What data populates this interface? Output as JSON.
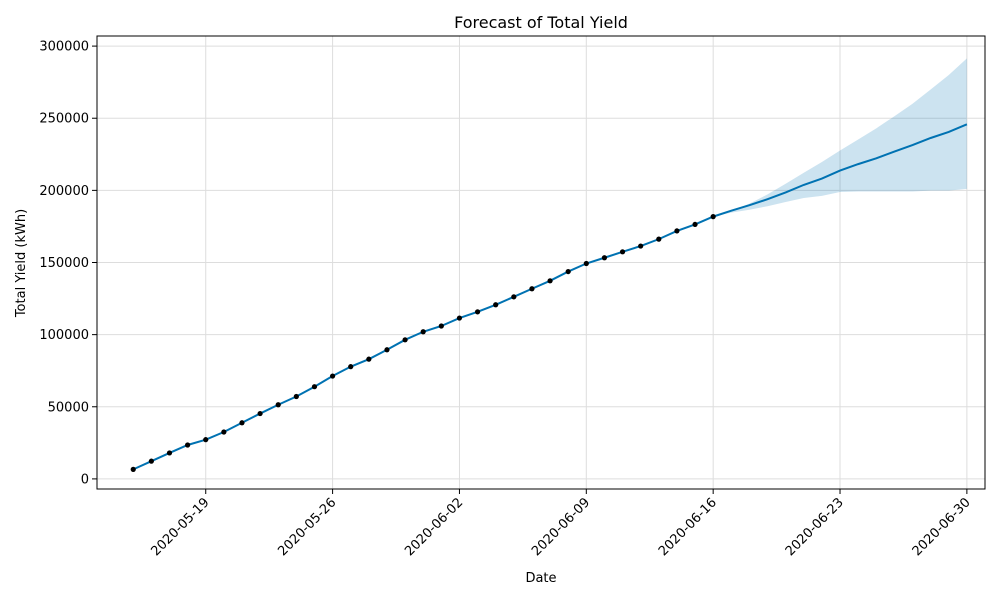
{
  "colors": {
    "forecast_line": "#0072B2",
    "interval_fill": "#0072B2",
    "observed_points": "#000000",
    "grid": "#dddddd"
  },
  "chart_data": {
    "type": "line",
    "title": "Forecast of Total Yield",
    "xlabel": "Date",
    "ylabel": "Total Yield (kWh)",
    "xlim": [
      "2020-05-13",
      "2020-07-01"
    ],
    "ylim": [
      -7000,
      307000
    ],
    "grid": true,
    "x_ticks": [
      "2020-05-19",
      "2020-05-26",
      "2020-06-02",
      "2020-06-09",
      "2020-06-16",
      "2020-06-23",
      "2020-06-30"
    ],
    "y_ticks": [
      0,
      50000,
      100000,
      150000,
      200000,
      250000,
      300000
    ],
    "observed": {
      "x": [
        "2020-05-15",
        "2020-05-16",
        "2020-05-17",
        "2020-05-18",
        "2020-05-19",
        "2020-05-20",
        "2020-05-21",
        "2020-05-22",
        "2020-05-23",
        "2020-05-24",
        "2020-05-25",
        "2020-05-26",
        "2020-05-27",
        "2020-05-28",
        "2020-05-29",
        "2020-05-30",
        "2020-05-31",
        "2020-06-01",
        "2020-06-02",
        "2020-06-03",
        "2020-06-04",
        "2020-06-05",
        "2020-06-06",
        "2020-06-07",
        "2020-06-08",
        "2020-06-09",
        "2020-06-10",
        "2020-06-11",
        "2020-06-12",
        "2020-06-13",
        "2020-06-14",
        "2020-06-15",
        "2020-06-16"
      ],
      "y": [
        6600,
        12300,
        18000,
        23500,
        27200,
        32500,
        38900,
        45300,
        51400,
        57100,
        63900,
        71300,
        77800,
        83000,
        89500,
        96400,
        102000,
        106000,
        111500,
        115800,
        120700,
        126200,
        131800,
        137300,
        143700,
        149300,
        153300,
        157400,
        161400,
        166200,
        171900,
        176400,
        181800
      ]
    },
    "forecast": {
      "x": [
        "2020-05-15",
        "2020-05-16",
        "2020-05-17",
        "2020-05-18",
        "2020-05-19",
        "2020-05-20",
        "2020-05-21",
        "2020-05-22",
        "2020-05-23",
        "2020-05-24",
        "2020-05-25",
        "2020-05-26",
        "2020-05-27",
        "2020-05-28",
        "2020-05-29",
        "2020-05-30",
        "2020-05-31",
        "2020-06-01",
        "2020-06-02",
        "2020-06-03",
        "2020-06-04",
        "2020-06-05",
        "2020-06-06",
        "2020-06-07",
        "2020-06-08",
        "2020-06-09",
        "2020-06-10",
        "2020-06-11",
        "2020-06-12",
        "2020-06-13",
        "2020-06-14",
        "2020-06-15",
        "2020-06-16",
        "2020-06-17",
        "2020-06-18",
        "2020-06-19",
        "2020-06-20",
        "2020-06-21",
        "2020-06-22",
        "2020-06-23",
        "2020-06-24",
        "2020-06-25",
        "2020-06-26",
        "2020-06-27",
        "2020-06-28",
        "2020-06-29",
        "2020-06-30"
      ],
      "yhat": [
        6600,
        12300,
        18000,
        23500,
        27200,
        32500,
        38900,
        45300,
        51400,
        57100,
        63900,
        71300,
        77800,
        83000,
        89500,
        96400,
        102000,
        106000,
        111500,
        115800,
        120700,
        126200,
        131800,
        137300,
        143700,
        149300,
        153300,
        157400,
        161400,
        166200,
        171900,
        176400,
        181800,
        185900,
        189700,
        193900,
        198600,
        203800,
        208200,
        213700,
        218200,
        222200,
        226900,
        231400,
        236300,
        240500,
        245800
      ],
      "yhat_lower": [
        6600,
        12300,
        18000,
        23500,
        27200,
        32500,
        38900,
        45300,
        51400,
        57100,
        63900,
        71300,
        77800,
        83000,
        89500,
        96400,
        102000,
        106000,
        111500,
        115800,
        120700,
        126200,
        131800,
        137300,
        143700,
        149300,
        153300,
        157400,
        161400,
        166200,
        171900,
        176400,
        181800,
        184600,
        186600,
        189000,
        191900,
        194700,
        196200,
        198900,
        199200,
        199200,
        199200,
        199200,
        199800,
        199800,
        201000
      ],
      "yhat_upper": [
        6600,
        12300,
        18000,
        23500,
        27200,
        32500,
        38900,
        45300,
        51400,
        57100,
        63900,
        71300,
        77800,
        83000,
        89500,
        96400,
        102000,
        106000,
        111500,
        115800,
        120700,
        126200,
        131800,
        137300,
        143700,
        149300,
        153300,
        157400,
        161400,
        166200,
        171900,
        176400,
        181800,
        185900,
        190800,
        197200,
        204600,
        212200,
        219700,
        227600,
        235300,
        243000,
        251400,
        260000,
        269900,
        280000,
        291500
      ]
    }
  }
}
